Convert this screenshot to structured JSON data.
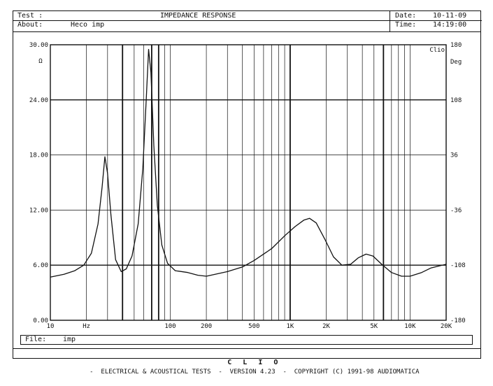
{
  "header": {
    "test_label": "Test :",
    "title": "IMPEDANCE RESPONSE",
    "about_label": "About:",
    "about_value": "Heco imp",
    "date_label": "Date:",
    "date_value": "10-11-09",
    "time_label": "Time:",
    "time_value": "14:19:00"
  },
  "file": {
    "label": "File:",
    "value": "imp"
  },
  "footer": {
    "brand": "C L I O",
    "text": "-  ELECTRICAL & ACOUSTICAL TESTS  -  VERSION 4.23  -  COPYRIGHT (C) 1991-98 AUDIOMATICA"
  },
  "chart_data": {
    "type": "line",
    "title": "IMPEDANCE RESPONSE",
    "xscale": "log",
    "xlim": [
      10,
      20000
    ],
    "ylim": [
      0,
      30
    ],
    "y2lim": [
      -180,
      180
    ],
    "ylabel": "Ω",
    "y2label": "Deg",
    "y_ticks": [
      "0.00",
      "6.00",
      "12.00",
      "18.00",
      "24.00",
      "30.00"
    ],
    "y2_ticks": [
      "-180",
      "-108",
      "-36",
      "36",
      "108",
      "180"
    ],
    "x_tick_labels": [
      {
        "value": 10,
        "label": "10"
      },
      {
        "value": 20,
        "label": "Hz"
      },
      {
        "value": 100,
        "label": "100"
      },
      {
        "value": 200,
        "label": "200"
      },
      {
        "value": 500,
        "label": "500"
      },
      {
        "value": 1000,
        "label": "1K"
      },
      {
        "value": 2000,
        "label": "2K"
      },
      {
        "value": 5000,
        "label": "5K"
      },
      {
        "value": 10000,
        "label": "10K"
      },
      {
        "value": 20000,
        "label": "20K"
      }
    ],
    "bold_x_lines": [
      40,
      70,
      80,
      1000,
      6000
    ],
    "legend_tag": "Clio",
    "grid": true,
    "series": [
      {
        "points": [
          [
            10,
            4.7
          ],
          [
            13,
            5.0
          ],
          [
            16,
            5.4
          ],
          [
            19,
            6.0
          ],
          [
            22,
            7.3
          ],
          [
            25,
            10.5
          ],
          [
            27,
            14.5
          ],
          [
            28.5,
            17.8
          ],
          [
            30,
            16.0
          ],
          [
            32,
            11.5
          ],
          [
            35,
            6.6
          ],
          [
            39,
            5.3
          ],
          [
            43,
            5.6
          ],
          [
            48,
            7.0
          ],
          [
            54,
            10.5
          ],
          [
            59,
            16.5
          ],
          [
            63,
            24.0
          ],
          [
            66,
            29.5
          ],
          [
            69,
            27.0
          ],
          [
            73,
            19.0
          ],
          [
            78,
            12.5
          ],
          [
            85,
            8.2
          ],
          [
            95,
            6.2
          ],
          [
            110,
            5.4
          ],
          [
            140,
            5.2
          ],
          [
            170,
            4.9
          ],
          [
            200,
            4.8
          ],
          [
            300,
            5.3
          ],
          [
            400,
            5.8
          ],
          [
            500,
            6.5
          ],
          [
            700,
            7.8
          ],
          [
            900,
            9.2
          ],
          [
            1100,
            10.2
          ],
          [
            1300,
            10.9
          ],
          [
            1450,
            11.1
          ],
          [
            1650,
            10.6
          ],
          [
            1950,
            8.8
          ],
          [
            2300,
            6.9
          ],
          [
            2700,
            6.0
          ],
          [
            3200,
            6.1
          ],
          [
            3700,
            6.8
          ],
          [
            4300,
            7.2
          ],
          [
            4900,
            7.0
          ],
          [
            5800,
            6.1
          ],
          [
            7000,
            5.2
          ],
          [
            8500,
            4.8
          ],
          [
            10000,
            4.8
          ],
          [
            12500,
            5.2
          ],
          [
            15000,
            5.7
          ],
          [
            20000,
            6.1
          ]
        ]
      }
    ]
  }
}
